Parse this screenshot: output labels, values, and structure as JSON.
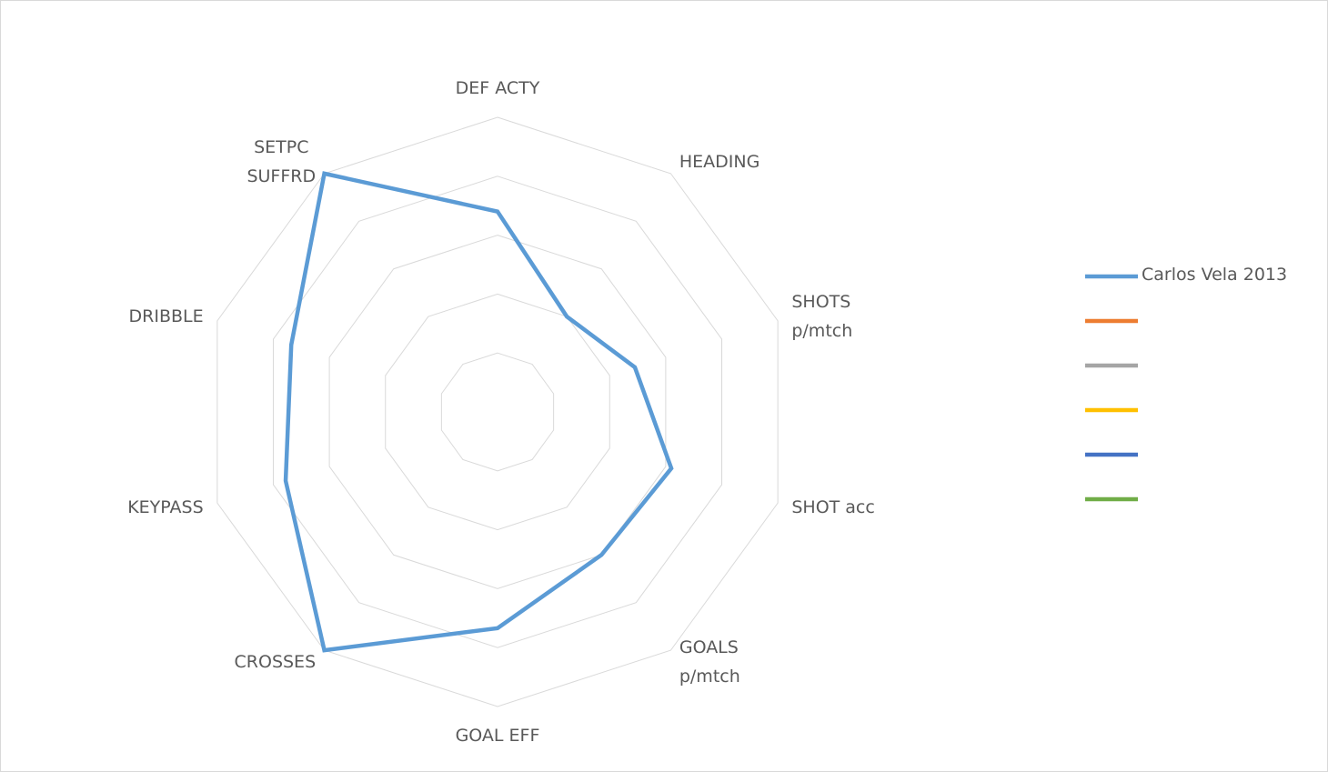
{
  "chart_data": {
    "type": "radar",
    "categories": [
      "DEF ACTY",
      "HEADING",
      "SHOTS\np/mtch",
      "SHOT acc",
      "GOALS\np/mtch",
      "GOAL EFF",
      "CROSSES",
      "KEYPASS",
      "DRIBBLE",
      "SETPC\nSUFFRD"
    ],
    "series": [
      {
        "name": "Carlos Vela 2013",
        "color": "#5b9bd5",
        "values": [
          3.4,
          2.0,
          2.45,
          3.1,
          3.0,
          3.67,
          5,
          3.78,
          3.68,
          5
        ]
      },
      {
        "name": null,
        "color": "#ed7d31",
        "values": [
          null,
          null,
          null,
          null,
          null,
          null,
          null,
          null,
          null,
          null
        ]
      },
      {
        "name": null,
        "color": "#a5a5a5",
        "values": [
          null,
          null,
          null,
          null,
          null,
          null,
          null,
          null,
          null,
          null
        ]
      },
      {
        "name": null,
        "color": "#ffc000",
        "values": [
          null,
          null,
          null,
          null,
          null,
          null,
          null,
          null,
          null,
          null
        ]
      },
      {
        "name": null,
        "color": "#4472c4",
        "values": [
          null,
          null,
          null,
          null,
          null,
          null,
          null,
          null,
          null,
          null
        ]
      },
      {
        "name": null,
        "color": "#70ad47",
        "values": [
          null,
          null,
          null,
          null,
          null,
          null,
          null,
          null,
          null,
          null
        ]
      }
    ],
    "ylim": [
      0,
      5
    ],
    "yticks": [
      1,
      2,
      3,
      4,
      5
    ],
    "grid": true,
    "legend": "right"
  }
}
